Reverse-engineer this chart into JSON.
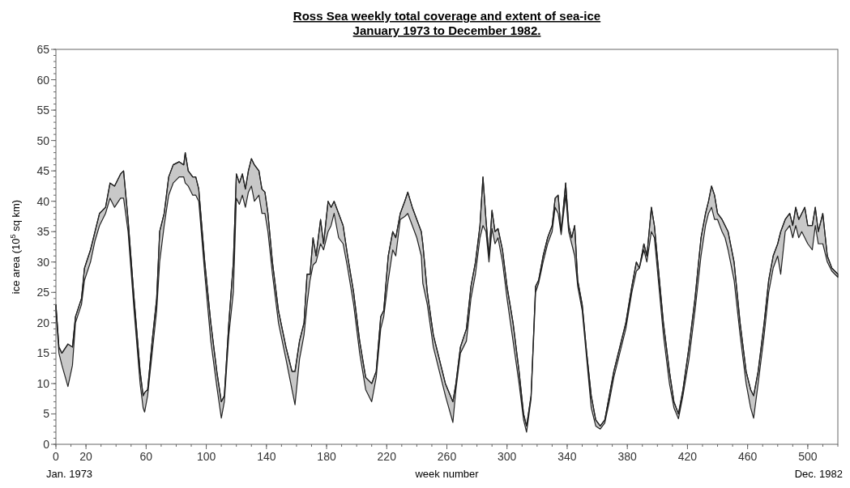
{
  "chart_data": {
    "type": "line",
    "title": "Ross Sea weekly total coverage and extent of sea-ice",
    "subtitle": "January 1973 to December 1982.",
    "xlabel": "week number",
    "ylabel": "ice area (10$^{5}$ sq km)",
    "xlim": [
      0,
      520
    ],
    "xticks": [
      0,
      20,
      60,
      100,
      140,
      180,
      220,
      260,
      300,
      340,
      380,
      420,
      460,
      500
    ],
    "ylim": [
      0,
      65
    ],
    "yticks": [
      0,
      5,
      10,
      15,
      20,
      25,
      30,
      35,
      40,
      45,
      50,
      55,
      60,
      65
    ],
    "grid": false,
    "marker": "none",
    "line_style": "solid",
    "annotations": [
      "Jan. 1973",
      "Dec. 1982"
    ],
    "x": [
      0,
      2,
      4,
      8,
      11,
      13,
      17,
      19,
      23,
      26,
      29,
      33,
      36,
      39,
      43,
      45,
      48,
      52,
      56,
      58,
      59,
      61,
      64,
      67,
      69,
      72,
      75,
      78,
      82,
      85,
      86,
      88,
      91,
      93,
      95,
      99,
      103,
      107,
      110,
      112,
      115,
      118,
      120,
      122,
      124,
      126,
      128,
      130,
      132,
      135,
      137,
      139,
      141,
      144,
      148,
      153,
      157,
      159,
      162,
      165,
      167,
      169,
      171,
      173,
      176,
      178,
      181,
      183,
      185,
      188,
      191,
      194,
      198,
      202,
      206,
      210,
      213,
      216,
      218,
      221,
      224,
      226,
      229,
      232,
      234,
      237,
      240,
      243,
      244,
      247,
      251,
      255,
      259,
      264,
      266,
      269,
      273,
      276,
      279,
      282,
      284,
      286,
      288,
      290,
      292,
      294,
      297,
      300,
      304,
      308,
      311,
      313,
      316,
      319,
      321,
      324,
      327,
      330,
      332,
      334,
      336,
      339,
      341,
      343,
      345,
      347,
      350,
      353,
      356,
      359,
      362,
      365,
      368,
      371,
      375,
      379,
      383,
      386,
      388,
      391,
      393,
      396,
      398,
      401,
      404,
      408,
      411,
      414,
      417,
      421,
      425,
      429,
      432,
      434,
      436,
      438,
      440,
      443,
      445,
      447,
      451,
      455,
      459,
      462,
      464,
      467,
      471,
      474,
      477,
      480,
      482,
      485,
      488,
      490,
      492,
      494,
      496,
      498,
      500,
      503,
      505,
      507,
      510,
      513,
      516,
      520
    ],
    "series": [
      {
        "color": "#222222",
        "values": [
          23,
          16,
          15,
          16.5,
          16,
          21,
          24,
          29,
          32,
          35,
          38,
          39,
          43,
          42.5,
          44.5,
          45,
          37,
          24,
          12,
          8,
          8.5,
          9,
          17,
          24,
          35,
          38,
          44,
          46,
          46.5,
          46,
          48,
          45,
          44,
          44,
          42,
          30,
          20,
          12,
          7,
          8,
          20,
          30,
          44.5,
          43,
          44.5,
          42,
          45,
          47,
          46,
          45,
          42,
          41.5,
          38,
          30,
          22,
          16,
          12,
          12,
          17,
          20,
          28,
          28,
          34,
          31,
          37,
          33,
          40,
          39,
          40,
          38,
          36,
          31,
          25,
          17,
          11,
          10,
          12,
          21,
          22,
          31,
          35,
          34,
          38,
          40,
          41.5,
          39,
          37,
          35,
          33,
          25,
          18,
          14,
          10,
          7,
          10,
          16,
          19,
          26,
          30,
          36,
          44,
          37,
          31,
          38.5,
          35,
          35.5,
          32,
          26,
          20,
          12,
          5,
          3,
          8,
          26,
          27,
          31,
          34,
          36,
          40.5,
          41,
          35,
          43,
          36,
          34,
          36,
          27,
          23,
          15,
          8,
          4,
          3,
          4,
          8,
          12,
          16,
          20,
          26,
          30,
          29,
          33,
          31,
          39,
          36,
          28,
          20,
          12,
          7,
          5,
          9,
          16,
          24,
          34,
          38,
          40,
          42.5,
          41,
          38,
          37,
          36,
          35,
          30,
          20,
          12,
          9,
          8,
          12,
          20,
          27,
          31,
          33,
          35,
          37,
          38,
          36,
          39,
          37,
          38,
          39,
          36,
          36,
          39,
          35,
          38,
          31,
          29,
          28
        ],
        "upper": [
          23,
          16,
          15,
          16.5,
          16,
          21,
          24,
          29,
          32,
          35,
          38,
          39,
          43,
          42.5,
          44.5,
          45,
          37,
          24,
          12,
          8,
          8.5,
          9,
          17,
          24,
          35,
          38,
          44,
          46,
          46.5,
          46,
          48,
          45,
          44,
          44,
          42,
          30,
          20,
          12,
          7,
          8,
          20,
          30,
          44.5,
          43,
          44.5,
          42,
          45,
          47,
          46,
          45,
          42,
          41.5,
          38,
          30,
          22,
          16,
          12,
          12,
          17,
          20,
          28,
          28,
          34,
          31,
          37,
          33,
          40,
          39,
          40,
          38,
          36,
          31,
          25,
          17,
          11,
          10,
          12,
          21,
          22,
          31,
          35,
          34,
          38,
          40,
          41.5,
          39,
          37,
          35,
          33,
          25,
          18,
          14,
          10,
          7,
          10,
          16,
          19,
          26,
          30,
          36,
          44,
          37,
          31,
          38.5,
          35,
          35.5,
          32,
          26,
          20,
          12,
          5,
          3,
          8,
          26,
          27,
          31,
          34,
          36,
          40.5,
          41,
          35,
          43,
          36,
          34,
          36,
          27,
          23,
          15,
          8,
          4,
          3,
          4,
          8,
          12,
          16,
          20,
          26,
          30,
          29,
          33,
          31,
          39,
          36,
          28,
          20,
          12,
          7,
          5,
          9,
          16,
          24,
          34,
          38,
          40,
          42.5,
          41,
          38,
          37,
          36,
          35,
          30,
          20,
          12,
          9,
          8,
          12,
          20,
          27,
          31,
          33,
          35,
          37,
          38,
          36,
          39,
          37,
          38,
          39,
          36,
          36,
          39,
          35,
          38,
          31,
          29,
          28
        ],
        "lower": [
          22,
          15,
          13,
          9.5,
          13,
          20,
          23,
          27,
          30,
          33.5,
          36,
          38,
          40.5,
          39,
          40.5,
          40.5,
          35,
          22,
          10,
          6,
          5.3,
          8,
          15,
          22,
          30,
          36,
          41,
          43,
          44,
          44,
          43,
          42.5,
          41,
          41,
          40,
          28,
          17,
          9.5,
          4.3,
          7,
          18,
          25,
          40.5,
          39.5,
          41,
          39,
          41.5,
          42.5,
          40,
          41,
          38,
          38,
          35,
          28,
          20,
          14,
          9,
          6.5,
          14,
          18,
          23,
          27,
          29.5,
          30,
          33,
          32,
          35,
          36,
          38,
          34,
          33,
          29,
          23,
          15,
          9,
          7,
          11,
          19,
          21,
          27,
          32,
          31,
          37,
          37.5,
          38,
          36,
          34,
          31,
          26.5,
          23,
          16,
          12,
          8,
          3.6,
          9,
          15,
          17,
          24,
          28,
          34,
          36,
          35,
          30,
          35.5,
          33,
          34,
          30,
          24,
          17,
          10,
          4,
          2,
          7.5,
          25,
          26.5,
          30,
          33,
          35,
          39,
          38,
          34.5,
          41,
          35,
          33,
          31,
          26,
          22,
          14,
          6,
          3,
          2.5,
          3.5,
          7,
          11,
          15,
          19,
          25,
          28.5,
          29,
          32,
          30,
          35,
          34,
          26,
          18,
          10,
          6,
          4.2,
          8,
          14,
          22,
          31,
          36,
          38,
          39,
          37,
          37,
          35,
          34,
          32,
          27,
          18,
          10,
          6,
          4.3,
          10,
          18,
          25,
          29,
          31,
          28,
          35,
          36,
          34,
          36,
          34,
          35,
          34,
          33,
          32,
          36,
          33,
          33,
          30,
          28.5,
          27.5
        ]
      }
    ]
  }
}
